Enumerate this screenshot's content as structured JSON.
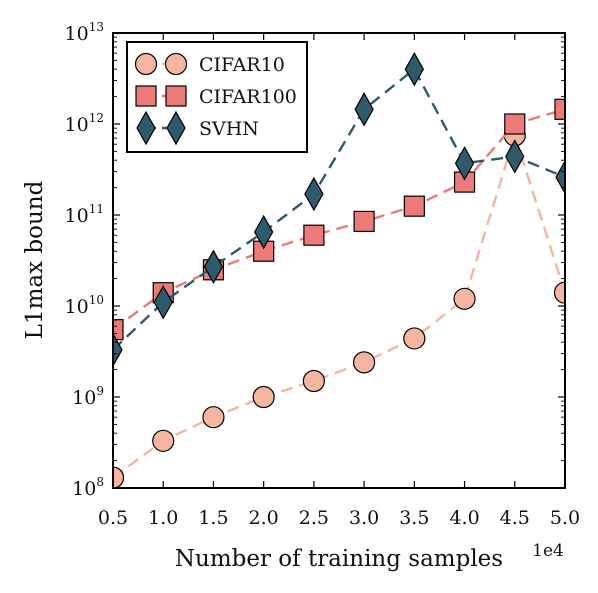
{
  "chart_data": {
    "type": "line",
    "title": "",
    "xlabel": "Number of training samples",
    "ylabel": "L1max bound",
    "x_offset_label": "1e4",
    "x": [
      0.5,
      1.0,
      1.5,
      2.0,
      2.5,
      3.0,
      3.5,
      4.0,
      4.5,
      5.0
    ],
    "x_ticks": [
      "0.5",
      "1.0",
      "1.5",
      "2.0",
      "2.5",
      "3.0",
      "3.5",
      "4.0",
      "4.5",
      "5.0"
    ],
    "y_scale": "log",
    "y_tick_base": "10",
    "y_tick_exponents": [
      "8",
      "9",
      "10",
      "11",
      "12",
      "13"
    ],
    "xlim": [
      0.5,
      5.0
    ],
    "ylim": [
      100000000.0,
      10000000000000.0
    ],
    "grid": false,
    "legend_position": "top-left",
    "series": [
      {
        "name": "CIFAR10",
        "marker": "circle",
        "color": "#f4b6a1",
        "values": [
          130000000.0,
          330000000.0,
          600000000.0,
          1000000000.0,
          1500000000.0,
          2400000000.0,
          4400000000.0,
          12000000000.0,
          750000000000.0,
          14000000000.0
        ]
      },
      {
        "name": "CIFAR100",
        "marker": "square",
        "color": "#ec7a78",
        "values": [
          5500000000.0,
          14000000000.0,
          25000000000.0,
          40000000000.0,
          60000000000.0,
          85000000000.0,
          125000000000.0,
          230000000000.0,
          1000000000000.0,
          1450000000000.0
        ]
      },
      {
        "name": "SVHN",
        "marker": "diamond",
        "color": "#2e5a6b",
        "values": [
          3300000000.0,
          11000000000.0,
          27000000000.0,
          65000000000.0,
          170000000000.0,
          1450000000000.0,
          4000000000000.0,
          370000000000.0,
          440000000000.0,
          260000000000.0
        ]
      }
    ]
  }
}
